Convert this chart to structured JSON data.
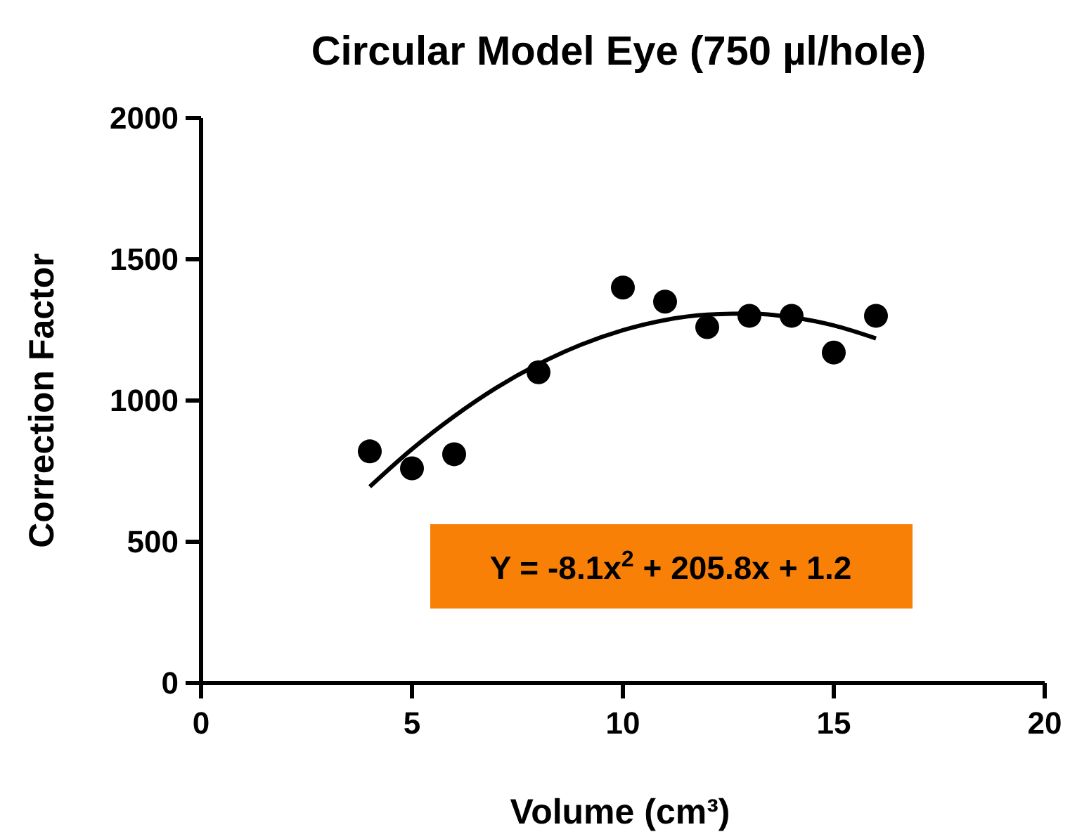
{
  "chart_data": {
    "type": "scatter",
    "title": "Circular Model Eye (750 µl/hole)",
    "xlabel": "Volume (cm³)",
    "ylabel": "Correction Factor",
    "annotations": [
      "Y = -8.1x$^{2}$ + 205.8x + 1.2"
    ],
    "xlim": [
      0,
      20
    ],
    "xticks": [
      0,
      5,
      10,
      15,
      20
    ],
    "ylim": [
      0,
      2000
    ],
    "yticks": [
      0,
      500,
      1000,
      1500,
      2000
    ],
    "grid": false,
    "series": [
      {
        "color": "#000000",
        "marker": "circle",
        "x": [
          4,
          5,
          6,
          8,
          10,
          11,
          12,
          13,
          14,
          15,
          16
        ],
        "values": [
          820,
          760,
          810,
          1100,
          1400,
          1350,
          1260,
          1300,
          1300,
          1170,
          1300
        ]
      },
      {
        "type": "line",
        "color": "#000000",
        "marker": "none",
        "line_style": "solid",
        "x": [
          4,
          5,
          6,
          7,
          8,
          9,
          10,
          11,
          12,
          13,
          14,
          15,
          16
        ],
        "values": [
          695,
          828,
          944,
          1045,
          1129,
          1197,
          1249,
          1285,
          1304,
          1308,
          1295,
          1266,
          1220
        ]
      }
    ]
  }
}
